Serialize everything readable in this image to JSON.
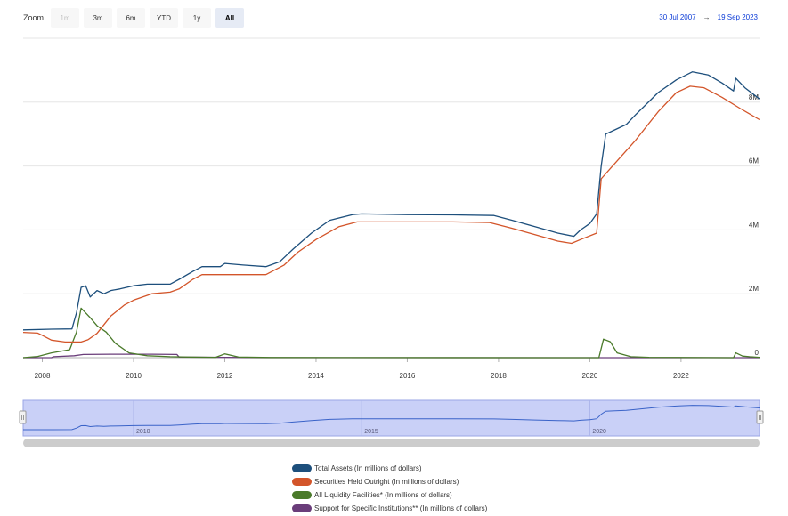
{
  "zoom": {
    "label": "Zoom",
    "buttons": [
      {
        "label": "1m",
        "state": "disabled"
      },
      {
        "label": "3m",
        "state": "normal"
      },
      {
        "label": "6m",
        "state": "normal"
      },
      {
        "label": "YTD",
        "state": "normal"
      },
      {
        "label": "1y",
        "state": "normal"
      },
      {
        "label": "All",
        "state": "selected"
      }
    ]
  },
  "date_range": {
    "from": "30 Jul 2007",
    "arrow": "→",
    "to": "19 Sep 2023"
  },
  "colors": {
    "total_assets": "#1d4f7c",
    "securities": "#d3552a",
    "liquidity": "#4a7a2a",
    "support": "#6a3d7a",
    "navigator_fill": "#c9d0f7",
    "navigator_line": "#3a63c8"
  },
  "chart_data": {
    "type": "line",
    "xlim": [
      2007.58,
      2023.72
    ],
    "ylim": [
      0,
      10000000
    ],
    "x_ticks": [
      "2008",
      "2010",
      "2012",
      "2014",
      "2016",
      "2018",
      "2020",
      "2022"
    ],
    "y_ticks": [
      "0",
      "2M",
      "4M",
      "6M",
      "8M"
    ],
    "navigator_ticks": [
      "2010",
      "2015",
      "2020"
    ],
    "series": [
      {
        "name": "Total Assets (In millions of dollars)",
        "key": "total_assets",
        "points": [
          [
            2007.58,
            870000
          ],
          [
            2008.2,
            890000
          ],
          [
            2008.65,
            900000
          ],
          [
            2008.75,
            1400000
          ],
          [
            2008.85,
            2200000
          ],
          [
            2008.95,
            2250000
          ],
          [
            2009.05,
            1900000
          ],
          [
            2009.2,
            2100000
          ],
          [
            2009.35,
            2000000
          ],
          [
            2009.5,
            2100000
          ],
          [
            2009.7,
            2150000
          ],
          [
            2010.0,
            2250000
          ],
          [
            2010.3,
            2300000
          ],
          [
            2010.8,
            2300000
          ],
          [
            2011.0,
            2450000
          ],
          [
            2011.3,
            2700000
          ],
          [
            2011.5,
            2850000
          ],
          [
            2011.9,
            2850000
          ],
          [
            2012.0,
            2950000
          ],
          [
            2012.4,
            2900000
          ],
          [
            2012.9,
            2850000
          ],
          [
            2013.2,
            3000000
          ],
          [
            2013.5,
            3400000
          ],
          [
            2013.9,
            3900000
          ],
          [
            2014.3,
            4300000
          ],
          [
            2014.8,
            4480000
          ],
          [
            2015.0,
            4500000
          ],
          [
            2016.0,
            4480000
          ],
          [
            2017.0,
            4470000
          ],
          [
            2017.9,
            4450000
          ],
          [
            2018.3,
            4300000
          ],
          [
            2018.8,
            4100000
          ],
          [
            2019.3,
            3900000
          ],
          [
            2019.65,
            3800000
          ],
          [
            2019.8,
            4000000
          ],
          [
            2020.0,
            4200000
          ],
          [
            2020.15,
            4500000
          ],
          [
            2020.25,
            6000000
          ],
          [
            2020.35,
            7000000
          ],
          [
            2020.5,
            7100000
          ],
          [
            2020.8,
            7300000
          ],
          [
            2021.0,
            7600000
          ],
          [
            2021.5,
            8300000
          ],
          [
            2021.9,
            8700000
          ],
          [
            2022.25,
            8950000
          ],
          [
            2022.6,
            8850000
          ],
          [
            2022.9,
            8600000
          ],
          [
            2023.15,
            8350000
          ],
          [
            2023.2,
            8750000
          ],
          [
            2023.4,
            8450000
          ],
          [
            2023.72,
            8100000
          ]
        ]
      },
      {
        "name": "Securities Held Outright (In millions of dollars)",
        "key": "securities",
        "points": [
          [
            2007.58,
            790000
          ],
          [
            2007.9,
            770000
          ],
          [
            2008.0,
            700000
          ],
          [
            2008.2,
            550000
          ],
          [
            2008.5,
            490000
          ],
          [
            2008.85,
            490000
          ],
          [
            2009.0,
            560000
          ],
          [
            2009.2,
            760000
          ],
          [
            2009.5,
            1300000
          ],
          [
            2009.8,
            1650000
          ],
          [
            2010.0,
            1800000
          ],
          [
            2010.4,
            2000000
          ],
          [
            2010.8,
            2050000
          ],
          [
            2011.0,
            2150000
          ],
          [
            2011.3,
            2450000
          ],
          [
            2011.5,
            2600000
          ],
          [
            2012.0,
            2600000
          ],
          [
            2012.5,
            2600000
          ],
          [
            2012.9,
            2600000
          ],
          [
            2013.3,
            2900000
          ],
          [
            2013.6,
            3300000
          ],
          [
            2014.0,
            3700000
          ],
          [
            2014.5,
            4100000
          ],
          [
            2014.9,
            4250000
          ],
          [
            2016.0,
            4250000
          ],
          [
            2017.0,
            4250000
          ],
          [
            2017.8,
            4230000
          ],
          [
            2018.3,
            4050000
          ],
          [
            2018.8,
            3850000
          ],
          [
            2019.3,
            3650000
          ],
          [
            2019.6,
            3580000
          ],
          [
            2019.8,
            3700000
          ],
          [
            2020.15,
            3900000
          ],
          [
            2020.25,
            5600000
          ],
          [
            2020.5,
            6000000
          ],
          [
            2021.0,
            6800000
          ],
          [
            2021.5,
            7700000
          ],
          [
            2021.9,
            8300000
          ],
          [
            2022.2,
            8500000
          ],
          [
            2022.5,
            8450000
          ],
          [
            2022.9,
            8150000
          ],
          [
            2023.3,
            7800000
          ],
          [
            2023.72,
            7450000
          ]
        ]
      },
      {
        "name": "All Liquidity Facilities* (In millions of dollars)",
        "key": "liquidity",
        "points": [
          [
            2007.58,
            0
          ],
          [
            2007.9,
            40000
          ],
          [
            2008.2,
            150000
          ],
          [
            2008.6,
            250000
          ],
          [
            2008.75,
            800000
          ],
          [
            2008.85,
            1550000
          ],
          [
            2008.95,
            1400000
          ],
          [
            2009.05,
            1250000
          ],
          [
            2009.2,
            1000000
          ],
          [
            2009.4,
            800000
          ],
          [
            2009.6,
            450000
          ],
          [
            2009.9,
            150000
          ],
          [
            2010.3,
            60000
          ],
          [
            2010.8,
            30000
          ],
          [
            2011.2,
            20000
          ],
          [
            2011.8,
            10000
          ],
          [
            2012.0,
            120000
          ],
          [
            2012.3,
            20000
          ],
          [
            2013.0,
            5000
          ],
          [
            2019.95,
            0
          ],
          [
            2020.2,
            0
          ],
          [
            2020.3,
            580000
          ],
          [
            2020.45,
            500000
          ],
          [
            2020.6,
            150000
          ],
          [
            2020.9,
            30000
          ],
          [
            2021.3,
            10000
          ],
          [
            2023.15,
            0
          ],
          [
            2023.2,
            150000
          ],
          [
            2023.35,
            50000
          ],
          [
            2023.5,
            30000
          ],
          [
            2023.72,
            10000
          ]
        ]
      },
      {
        "name": "Support for Specific Institutions** (In millions of dollars)",
        "key": "support",
        "points": [
          [
            2007.58,
            0
          ],
          [
            2008.2,
            0
          ],
          [
            2008.25,
            30000
          ],
          [
            2008.7,
            60000
          ],
          [
            2008.9,
            100000
          ],
          [
            2009.5,
            110000
          ],
          [
            2010.4,
            110000
          ],
          [
            2010.95,
            100000
          ],
          [
            2011.0,
            20000
          ],
          [
            2012.5,
            5000
          ],
          [
            2013.0,
            0
          ],
          [
            2023.72,
            0
          ]
        ]
      }
    ]
  },
  "legend": {
    "items": [
      "Total Assets (In millions of dollars)",
      "Securities Held Outright (In millions of dollars)",
      "All Liquidity Facilities* (In millions of dollars)",
      "Support for Specific Institutions** (In millions of dollars)"
    ]
  }
}
